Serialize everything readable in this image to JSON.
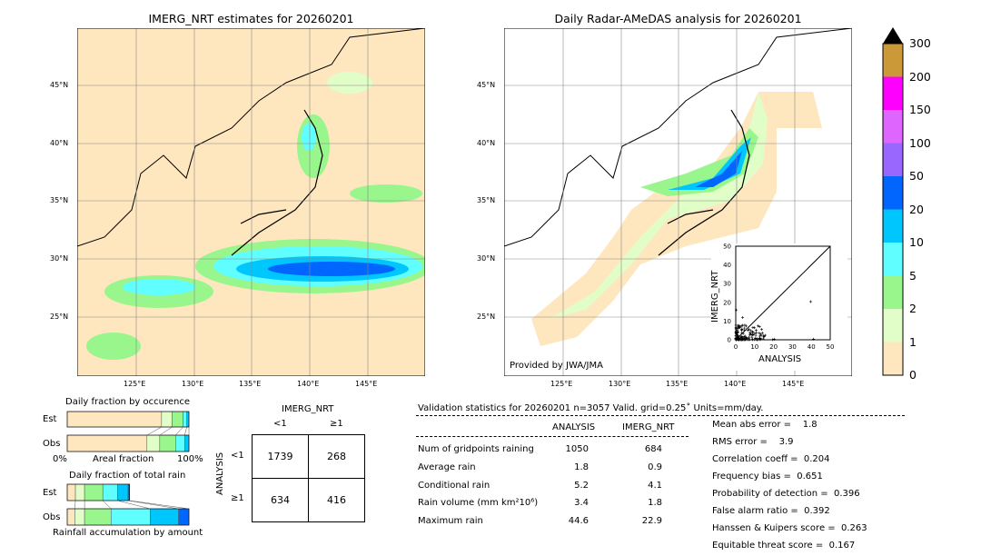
{
  "left_map": {
    "title": "IMERG_NRT estimates for 20260201"
  },
  "right_map": {
    "title": "Daily Radar-AMeDAS analysis for 20260201",
    "credit": "Provided by JWA/JMA"
  },
  "lon_ticks": [
    "125°E",
    "130°E",
    "135°E",
    "140°E",
    "145°E"
  ],
  "lat_ticks": [
    "45°N",
    "40°N",
    "35°N",
    "30°N",
    "25°N"
  ],
  "colorbar": {
    "labels": [
      "0",
      "1",
      "2",
      "5",
      "10",
      "20",
      "50",
      "100",
      "150",
      "200",
      "300"
    ],
    "colors": [
      "#fee6bf",
      "#e2fec8",
      "#98f68c",
      "#60fefe",
      "#00c6fe",
      "#0066fe",
      "#9966fe",
      "#de66fe",
      "#fe00fe",
      "#cc9938"
    ],
    "extend_color": "#000000"
  },
  "scatter": {
    "xlabel": "ANALYSIS",
    "ylabel": "IMERG_NRT",
    "ticks": [
      "0",
      "10",
      "20",
      "30",
      "40",
      "50"
    ]
  },
  "chart_data": {
    "type": "bar",
    "occurrence": {
      "title": "Daily fraction by occurence",
      "xlabel": "Areal fraction",
      "xmin_label": "0%",
      "xmax_label": "100%",
      "series": [
        {
          "name": "Est",
          "values": [
            77.5,
            8.75,
            9,
            3,
            1.75
          ]
        },
        {
          "name": "Obs",
          "values": [
            65.5,
            10.5,
            13,
            7.5,
            3.5
          ]
        }
      ]
    },
    "total_rain": {
      "title": "Daily fraction of total rain",
      "xlabel": "Rainfall accumulation by amount",
      "series": [
        {
          "name": "Est",
          "values": [
            6.75,
            7.5,
            15,
            12,
            8.75,
            1.25
          ]
        },
        {
          "name": "Obs",
          "values": [
            6.25,
            8,
            21.75,
            32.25,
            23.25,
            8.5
          ]
        }
      ]
    }
  },
  "contingency": {
    "col_title": "IMERG_NRT",
    "row_title": "ANALYSIS",
    "cols": [
      "<1",
      "≥1"
    ],
    "rows": [
      "<1",
      "≥1"
    ],
    "values": [
      [
        "1739",
        "268"
      ],
      [
        "634",
        "416"
      ]
    ]
  },
  "stats": {
    "header": "Validation statistics for 20260201  n=3057 Valid. grid=0.25˚ Units=mm/day.",
    "cols": [
      "ANALYSIS",
      "IMERG_NRT"
    ],
    "rows": [
      {
        "label": "Num of gridpoints raining",
        "a": "1050",
        "b": "684"
      },
      {
        "label": "Average rain",
        "a": "1.8",
        "b": "0.9"
      },
      {
        "label": "Conditional rain",
        "a": "5.2",
        "b": "4.1"
      },
      {
        "label": "Rain volume (mm km²10⁶)",
        "a": "3.4",
        "b": "1.8"
      },
      {
        "label": "Maximum rain",
        "a": "44.6",
        "b": "22.9"
      }
    ],
    "scores": [
      "Mean abs error =    1.8",
      "RMS error =    3.9",
      "Correlation coeff =  0.204",
      "Frequency bias =  0.651",
      "Probability of detection =  0.396",
      "False alarm ratio =  0.392",
      "Hanssen & Kuipers score =  0.263",
      "Equitable threat score =  0.167"
    ]
  },
  "bar_labels": {
    "est": "Est",
    "obs": "Obs"
  }
}
